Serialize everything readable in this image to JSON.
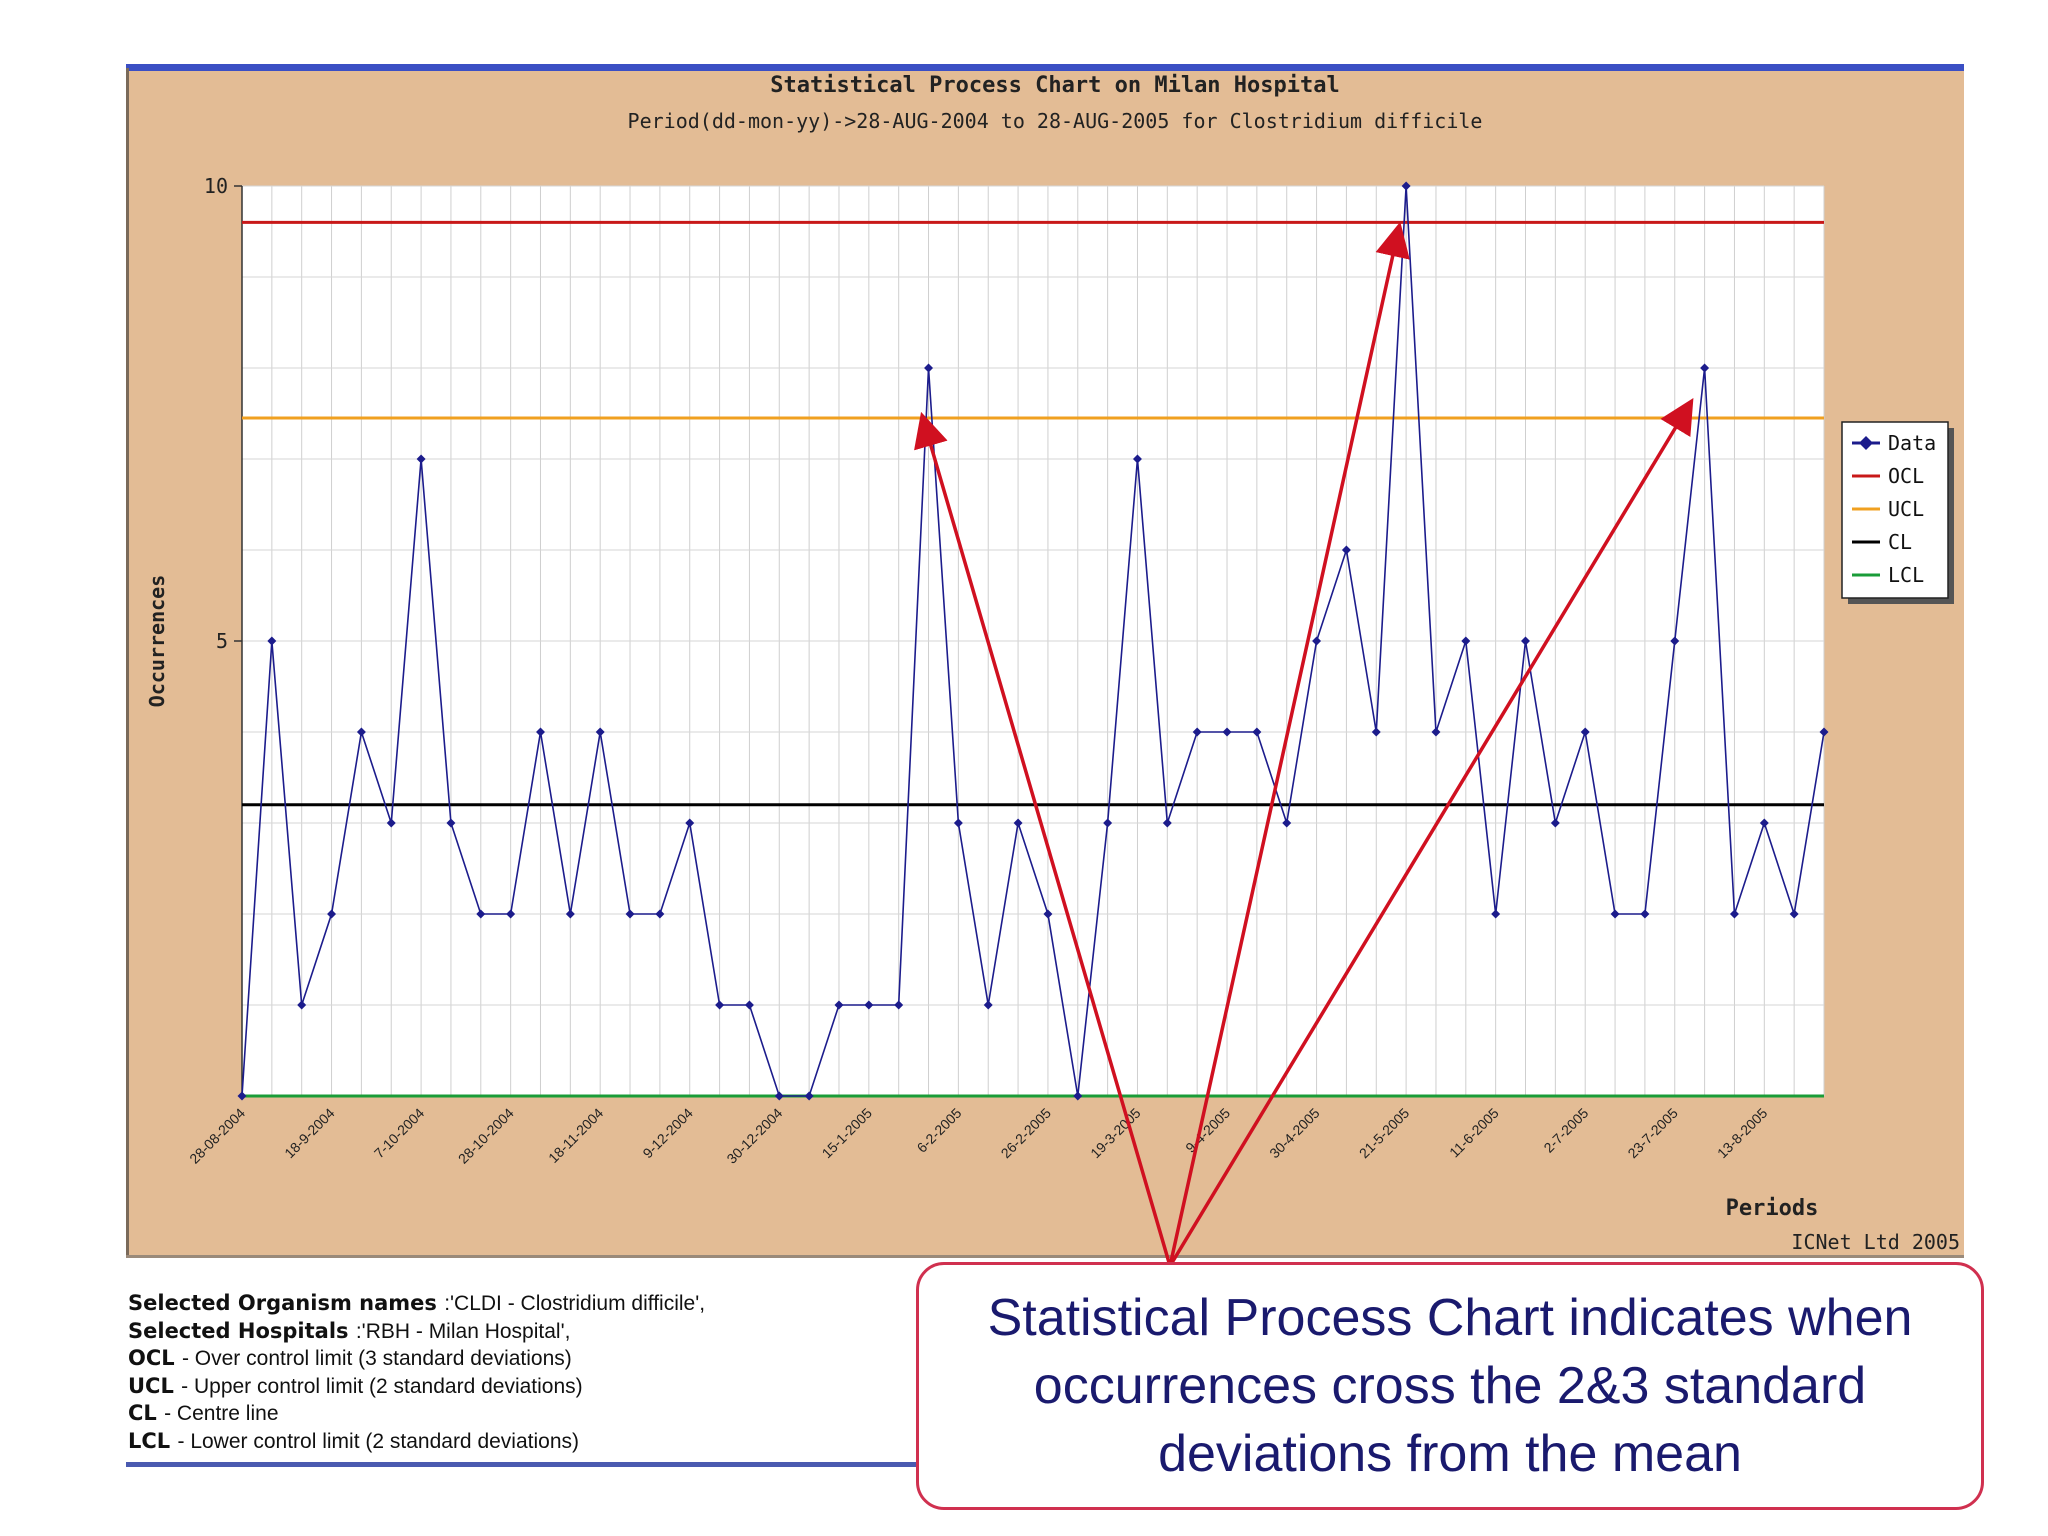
{
  "colors": {
    "frame_bg": "#e3bc95",
    "plot_bg": "#ffffff",
    "frame_top": "#3b4fc4",
    "data": "#1c1c8c",
    "ocl": "#c81818",
    "ucl": "#f0a020",
    "cl": "#000000",
    "lcl": "#1a9c38",
    "arrow": "#d01020"
  },
  "chart_data": {
    "type": "line",
    "title": "Statistical Process Chart on Milan Hospital",
    "subtitle": "Period(dd-mon-yy)->28-AUG-2004 to 28-AUG-2005 for Clostridium difficile",
    "xlabel": "Periods",
    "ylabel": "Occurrences",
    "ylim": [
      0,
      10
    ],
    "yticks": [
      10,
      5
    ],
    "x_tick_labels": [
      "28-08-2004",
      "18-9-2004",
      "7-10-2004",
      "28-10-2004",
      "18-11-2004",
      "9-12-2004",
      "30-12-2004",
      "15-1-2005",
      "6-2-2005",
      "26-2-2005",
      "19-3-2005",
      "9-4-2005",
      "30-4-2005",
      "21-5-2005",
      "11-6-2005",
      "2-7-2005",
      "23-7-2005",
      "13-8-2005"
    ],
    "series": [
      {
        "name": "Data",
        "values": [
          0,
          5,
          1,
          2,
          4,
          3,
          7,
          3,
          2,
          2,
          4,
          2,
          4,
          2,
          2,
          3,
          1,
          1,
          0,
          0,
          1,
          1,
          1,
          8,
          3,
          1,
          3,
          2,
          0,
          3,
          7,
          3,
          4,
          4,
          4,
          3,
          5,
          6,
          4,
          10,
          4,
          5,
          2,
          5,
          3,
          4,
          2,
          2,
          5,
          8,
          2,
          3,
          2,
          4
        ]
      }
    ],
    "control_lines": [
      {
        "name": "OCL",
        "value": 9.6
      },
      {
        "name": "UCL",
        "value": 7.45
      },
      {
        "name": "CL",
        "value": 3.2
      },
      {
        "name": "LCL",
        "value": 0
      }
    ],
    "legend": [
      "Data",
      "OCL",
      "UCL",
      "CL",
      "LCL"
    ],
    "legend_position": "right",
    "credit": "ICNet Ltd 2005",
    "grid": true
  },
  "footnotes": [
    {
      "key": "Selected Organism names",
      "text": ":'CLDI - Clostridium difficile',"
    },
    {
      "key": "Selected Hospitals",
      "text": ":'RBH - Milan Hospital',"
    },
    {
      "key": "OCL",
      "text": " - Over control limit (3 standard deviations)"
    },
    {
      "key": "UCL",
      "text": " - Upper control limit (2 standard deviations)"
    },
    {
      "key": "CL",
      "text": " - Centre line"
    },
    {
      "key": "LCL",
      "text": " - Lower control limit (2 standard deviations)"
    }
  ],
  "callout": {
    "text": "Statistical Process Chart indicates when occurrences cross the 2&3 standard deviations from the mean"
  }
}
